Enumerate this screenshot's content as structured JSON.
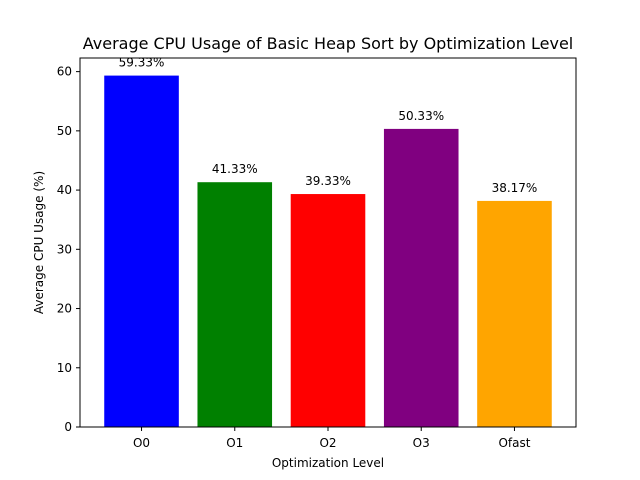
{
  "chart_data": {
    "type": "bar",
    "title": "Average CPU Usage of Basic Heap Sort by Optimization Level",
    "xlabel": "Optimization Level",
    "ylabel": "Average CPU Usage (%)",
    "categories": [
      "O0",
      "O1",
      "O2",
      "O3",
      "Ofast"
    ],
    "values": [
      59.33,
      41.33,
      39.33,
      50.33,
      38.17
    ],
    "data_labels": [
      "59.33%",
      "41.33%",
      "39.33%",
      "50.33%",
      "38.17%"
    ],
    "colors": [
      "#0000ff",
      "#008000",
      "#ff0000",
      "#800080",
      "#ffa500"
    ],
    "ylim": [
      0,
      62.3
    ],
    "yticks": [
      0,
      10,
      20,
      30,
      40,
      50,
      60
    ],
    "grid": false,
    "legend": "none"
  }
}
